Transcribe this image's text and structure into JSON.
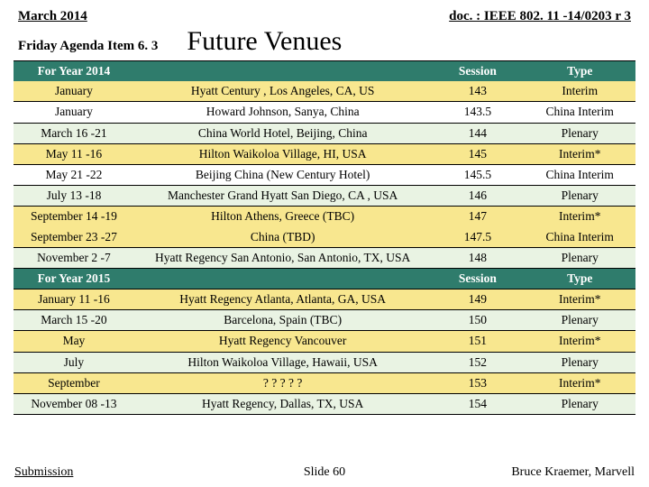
{
  "header": {
    "date_label": "March 2014",
    "doc_label": "doc. : IEEE 802. 11 -14/0203 r 3",
    "agenda_label": "Friday Agenda Item 6. 3",
    "title": "Future Venues"
  },
  "colors": {
    "teal": "#2f7c6c",
    "yellow": "#f8e78f",
    "pale_green": "#e9f3e3",
    "white": "#ffffff",
    "header_text": "#ffffff",
    "body_text": "#000000"
  },
  "columns": [
    "col-date",
    "col-venue",
    "col-session",
    "col-type"
  ],
  "rows": [
    {
      "cells": [
        "For Year 2014",
        "",
        "Session",
        "Type"
      ],
      "bg": "#2f7c6c",
      "text": "#ffffff",
      "hdr": true,
      "border_t": true
    },
    {
      "cells": [
        "January",
        "Hyatt Century , Los Angeles, CA, US",
        "143",
        "Interim"
      ],
      "bg": "#f8e78f"
    },
    {
      "cells": [
        "January",
        "Howard Johnson, Sanya, China",
        "143.5",
        "China Interim"
      ],
      "bg": "#ffffff",
      "border_t": true,
      "border_b": true
    },
    {
      "cells": [
        "March 16 -21",
        "China World Hotel, Beijing, China",
        "144",
        "Plenary"
      ],
      "bg": "#e9f3e3",
      "border_b": true
    },
    {
      "cells": [
        "May 11 -16",
        "Hilton Waikoloa Village, HI, USA",
        "145",
        "Interim*"
      ],
      "bg": "#f8e78f",
      "border_b": true
    },
    {
      "cells": [
        "May 21 -22",
        "Beijing China (New Century Hotel)",
        "145.5",
        "China Interim"
      ],
      "bg": "#ffffff",
      "border_b": true
    },
    {
      "cells": [
        "July 13 -18",
        "Manchester Grand Hyatt San Diego, CA , USA",
        "146",
        "Plenary"
      ],
      "bg": "#e9f3e3",
      "border_b": true
    },
    {
      "cells": [
        "September 14 -19",
        "Hilton Athens, Greece (TBC)",
        "147",
        "Interim*"
      ],
      "bg": "#f8e78f"
    },
    {
      "cells": [
        "September 23 -27",
        "China (TBD)",
        "147.5",
        "China Interim"
      ],
      "bg": "#f8e78f",
      "border_b": true
    },
    {
      "cells": [
        "November 2 -7",
        "Hyatt Regency San Antonio, San Antonio, TX, USA",
        "148",
        "Plenary"
      ],
      "bg": "#e9f3e3",
      "border_b": true
    },
    {
      "cells": [
        "For Year 2015",
        "",
        "Session",
        "Type"
      ],
      "bg": "#2f7c6c",
      "text": "#ffffff",
      "hdr": true,
      "border_b": true
    },
    {
      "cells": [
        "January 11 -16",
        "Hyatt Regency Atlanta, Atlanta, GA, USA",
        "149",
        "Interim*"
      ],
      "bg": "#f8e78f",
      "border_b": true
    },
    {
      "cells": [
        "March 15 -20",
        "Barcelona, Spain (TBC)",
        "150",
        "Plenary"
      ],
      "bg": "#e9f3e3",
      "border_b": true
    },
    {
      "cells": [
        "May",
        "Hyatt Regency Vancouver",
        "151",
        "Interim*"
      ],
      "bg": "#f8e78f",
      "border_b": true
    },
    {
      "cells": [
        "July",
        "Hilton Waikoloa Village, Hawaii, USA",
        "152",
        "Plenary"
      ],
      "bg": "#e9f3e3",
      "border_b": true
    },
    {
      "cells": [
        "September",
        "? ? ? ? ?",
        "153",
        "Interim*"
      ],
      "bg": "#f8e78f",
      "border_b": true
    },
    {
      "cells": [
        "November 08 -13",
        "Hyatt Regency, Dallas, TX, USA",
        "154",
        "Plenary"
      ],
      "bg": "#e9f3e3",
      "border_b": true
    }
  ],
  "footer": {
    "left": "Submission",
    "center": "Slide 60",
    "right": "Bruce Kraemer, Marvell"
  }
}
